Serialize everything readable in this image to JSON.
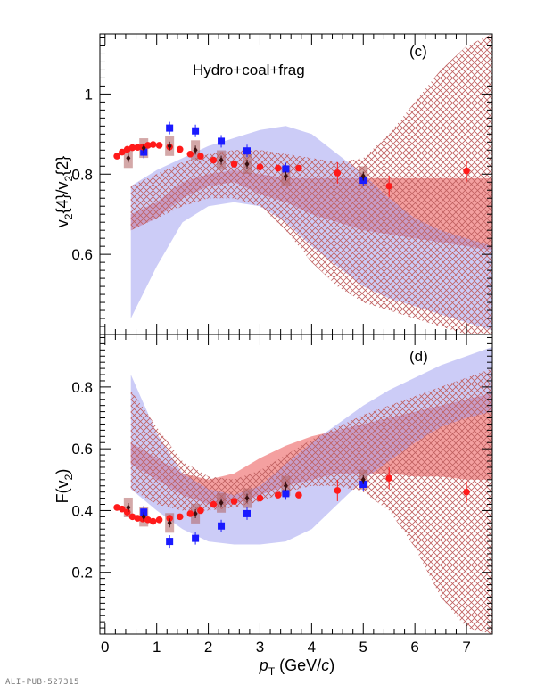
{
  "credit": "ALI-PUB-527315",
  "x_axis": {
    "label_main": "p",
    "label_sub": "T",
    "label_unit_open": "(GeV/",
    "label_unit_c": "c",
    "label_unit_close": ")",
    "ticks": [
      "0",
      "1",
      "2",
      "3",
      "4",
      "5",
      "6",
      "7"
    ]
  },
  "colors": {
    "red": "#ff1a1a",
    "blue": "#1a1aff",
    "red_band": "#f08080",
    "blue_band": "#9a9af0",
    "syst_box": "#b06060",
    "black_marker": "#3a1010"
  },
  "chart_data": [
    {
      "type": "scatter",
      "panel_label": "(c)",
      "annotation": "Hydro+coal+frag",
      "ylabel": "v2{4}/v2{2}",
      "ylabel_parts": [
        "v",
        "2",
        "{4}/v",
        "2",
        "{2}"
      ],
      "xlim": [
        -0.1,
        7.5
      ],
      "ylim": [
        0.4,
        1.15
      ],
      "yticks": [
        "0.6",
        "0.8",
        "1"
      ],
      "series": [
        {
          "kind": "red-circles",
          "x": [
            0.23,
            0.33,
            0.43,
            0.53,
            0.63,
            0.73,
            0.83,
            0.93,
            1.05,
            1.25,
            1.45,
            1.65,
            1.85,
            2.1,
            2.5,
            3.0,
            3.35,
            3.75,
            4.5,
            5.5,
            7.0
          ],
          "y": [
            0.845,
            0.855,
            0.862,
            0.866,
            0.867,
            0.868,
            0.872,
            0.874,
            0.872,
            0.868,
            0.862,
            0.85,
            0.845,
            0.835,
            0.825,
            0.818,
            0.815,
            0.815,
            0.803,
            0.77,
            0.808
          ]
        },
        {
          "kind": "blue-squares",
          "x": [
            0.75,
            1.25,
            1.75,
            2.25,
            2.75,
            3.5,
            5.0
          ],
          "y": [
            0.855,
            0.915,
            0.908,
            0.882,
            0.858,
            0.813,
            0.785
          ]
        },
        {
          "kind": "black-diamonds",
          "x": [
            0.45,
            0.75,
            1.25,
            1.75,
            2.25,
            2.75,
            3.5,
            5.0
          ],
          "y": [
            0.84,
            0.865,
            0.87,
            0.86,
            0.835,
            0.825,
            0.795,
            0.795
          ]
        },
        {
          "kind": "red-band",
          "x": [
            0.5,
            1.0,
            1.5,
            2.0,
            2.5,
            3.0,
            3.5,
            4.0,
            4.5,
            5.0,
            5.5,
            6.0,
            6.5,
            7.0,
            7.5
          ],
          "low": [
            0.66,
            0.69,
            0.74,
            0.77,
            0.78,
            0.75,
            0.73,
            0.7,
            0.68,
            0.66,
            0.65,
            0.64,
            0.63,
            0.62,
            0.61
          ],
          "high": [
            0.7,
            0.73,
            0.78,
            0.8,
            0.81,
            0.8,
            0.79,
            0.79,
            0.79,
            0.79,
            0.79,
            0.79,
            0.79,
            0.79,
            0.79
          ]
        },
        {
          "kind": "blue-band",
          "x": [
            0.5,
            1.0,
            1.5,
            2.0,
            2.5,
            3.0,
            3.5,
            4.0,
            4.5,
            5.0,
            5.5,
            6.0,
            6.5,
            7.0,
            7.5
          ],
          "low": [
            0.44,
            0.57,
            0.68,
            0.72,
            0.73,
            0.72,
            0.68,
            0.62,
            0.57,
            0.52,
            0.49,
            0.47,
            0.45,
            0.43,
            0.41
          ],
          "high": [
            0.77,
            0.81,
            0.84,
            0.87,
            0.89,
            0.91,
            0.92,
            0.9,
            0.85,
            0.8,
            0.74,
            0.69,
            0.66,
            0.64,
            0.62
          ]
        },
        {
          "kind": "hatched-band",
          "x": [
            0.5,
            1.0,
            1.5,
            2.0,
            2.5,
            3.0,
            3.5,
            4.0,
            4.5,
            5.0,
            5.5,
            6.0,
            6.5,
            7.0,
            7.5
          ],
          "low": [
            0.66,
            0.69,
            0.72,
            0.74,
            0.74,
            0.72,
            0.66,
            0.58,
            0.52,
            0.48,
            0.46,
            0.44,
            0.42,
            0.4,
            0.4
          ],
          "high": [
            0.77,
            0.8,
            0.83,
            0.85,
            0.86,
            0.86,
            0.85,
            0.84,
            0.83,
            0.84,
            0.9,
            0.98,
            1.06,
            1.12,
            1.15
          ]
        }
      ]
    },
    {
      "type": "scatter",
      "panel_label": "(d)",
      "ylabel": "F(v2)",
      "ylabel_parts": [
        "F(v",
        "2",
        ")"
      ],
      "xlim": [
        -0.1,
        7.5
      ],
      "ylim": [
        0.0,
        0.97
      ],
      "yticks": [
        "0.2",
        "0.4",
        "0.6",
        "0.8"
      ],
      "series": [
        {
          "kind": "red-circles",
          "x": [
            0.23,
            0.33,
            0.43,
            0.53,
            0.63,
            0.73,
            0.83,
            0.93,
            1.05,
            1.25,
            1.45,
            1.65,
            1.85,
            2.1,
            2.5,
            3.0,
            3.35,
            3.75,
            4.5,
            5.5,
            7.0
          ],
          "y": [
            0.41,
            0.405,
            0.395,
            0.38,
            0.375,
            0.373,
            0.37,
            0.365,
            0.37,
            0.375,
            0.38,
            0.39,
            0.4,
            0.42,
            0.43,
            0.44,
            0.45,
            0.45,
            0.465,
            0.505,
            0.46
          ]
        },
        {
          "kind": "blue-squares",
          "x": [
            0.75,
            1.25,
            1.75,
            2.25,
            2.75,
            3.5,
            5.0
          ],
          "y": [
            0.395,
            0.3,
            0.31,
            0.35,
            0.39,
            0.455,
            0.485
          ]
        },
        {
          "kind": "black-diamonds",
          "x": [
            0.45,
            0.75,
            1.25,
            1.75,
            2.25,
            2.75,
            3.5,
            5.0
          ],
          "y": [
            0.41,
            0.38,
            0.36,
            0.39,
            0.425,
            0.44,
            0.48,
            0.5
          ]
        },
        {
          "kind": "red-band",
          "x": [
            0.5,
            1.0,
            1.5,
            2.0,
            2.5,
            3.0,
            3.5,
            4.0,
            4.5,
            5.0,
            5.5,
            6.0,
            6.5,
            7.0,
            7.5
          ],
          "low": [
            0.55,
            0.5,
            0.45,
            0.42,
            0.42,
            0.45,
            0.48,
            0.5,
            0.52,
            0.52,
            0.52,
            0.51,
            0.51,
            0.5,
            0.5
          ],
          "high": [
            0.62,
            0.57,
            0.52,
            0.5,
            0.52,
            0.57,
            0.61,
            0.64,
            0.66,
            0.68,
            0.7,
            0.72,
            0.74,
            0.76,
            0.78
          ]
        },
        {
          "kind": "blue-band",
          "x": [
            0.5,
            1.0,
            1.5,
            2.0,
            2.5,
            3.0,
            3.5,
            4.0,
            4.5,
            5.0,
            5.5,
            6.0,
            6.5,
            7.0,
            7.5
          ],
          "low": [
            0.47,
            0.4,
            0.34,
            0.3,
            0.29,
            0.29,
            0.3,
            0.34,
            0.42,
            0.5,
            0.56,
            0.62,
            0.67,
            0.7,
            0.72
          ],
          "high": [
            0.84,
            0.65,
            0.52,
            0.47,
            0.45,
            0.48,
            0.55,
            0.62,
            0.68,
            0.74,
            0.79,
            0.83,
            0.87,
            0.9,
            0.93
          ]
        },
        {
          "kind": "hatched-band",
          "x": [
            0.5,
            1.0,
            1.5,
            2.0,
            2.5,
            3.0,
            3.5,
            4.0,
            4.5,
            5.0,
            5.5,
            6.0,
            6.5,
            7.0,
            7.5
          ],
          "low": [
            0.47,
            0.42,
            0.4,
            0.4,
            0.41,
            0.43,
            0.46,
            0.48,
            0.48,
            0.46,
            0.4,
            0.28,
            0.12,
            0.02,
            0.0
          ],
          "high": [
            0.79,
            0.67,
            0.56,
            0.51,
            0.5,
            0.53,
            0.58,
            0.63,
            0.67,
            0.71,
            0.74,
            0.77,
            0.8,
            0.83,
            0.86
          ]
        }
      ]
    }
  ]
}
